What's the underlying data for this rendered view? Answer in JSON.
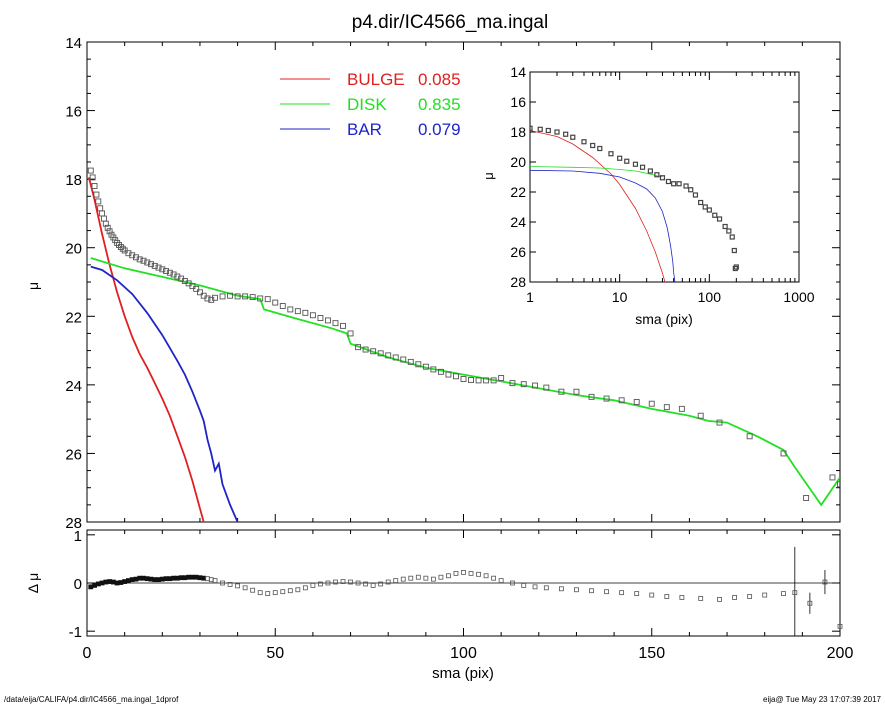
{
  "footer": {
    "path": "/data/eija/CALIFA/p4.dir/IC4566_ma.ingal_1dprof",
    "stamp": "eija@  Tue May 23 17:07:39 2017"
  },
  "chart_data": [
    {
      "id": "main",
      "type": "line",
      "title": "p4.dir/IC4566_ma.ingal",
      "ylabel": "μ",
      "xlim": [
        0,
        200
      ],
      "ylim": [
        28,
        14
      ],
      "x_ticks": [
        0,
        50,
        100,
        150,
        200
      ],
      "y_ticks": [
        14,
        16,
        18,
        20,
        22,
        24,
        26,
        28
      ],
      "legend": [
        {
          "label": "BULGE",
          "value": "0.085",
          "color": "#e02020"
        },
        {
          "label": "DISK",
          "value": "0.835",
          "color": "#22e022"
        },
        {
          "label": "BAR",
          "value": "0.079",
          "color": "#1f24c8"
        }
      ],
      "series": [
        {
          "name": "BULGE",
          "color": "#e02020",
          "x": [
            0.5,
            2,
            4,
            6,
            8,
            10,
            12,
            14,
            16,
            18,
            20,
            22,
            24,
            26,
            28,
            30,
            32
          ],
          "y": [
            17.95,
            18.6,
            19.6,
            20.5,
            21.3,
            22.0,
            22.6,
            23.1,
            23.5,
            23.95,
            24.4,
            24.9,
            25.5,
            26.1,
            26.8,
            27.6,
            28.4
          ]
        },
        {
          "name": "DISK",
          "color": "#22e022",
          "x": [
            1,
            10,
            20,
            30,
            40,
            46,
            47,
            55,
            65,
            69,
            70,
            80,
            90,
            100,
            110,
            120,
            130,
            140,
            150,
            160,
            165,
            170,
            178,
            185,
            188,
            195,
            200
          ],
          "y": [
            20.3,
            20.6,
            20.85,
            21.1,
            21.4,
            21.5,
            21.8,
            22.05,
            22.35,
            22.5,
            22.8,
            23.2,
            23.5,
            23.7,
            23.9,
            24.1,
            24.3,
            24.45,
            24.7,
            24.9,
            25.05,
            25.1,
            25.5,
            25.9,
            26.4,
            27.5,
            26.7
          ]
        },
        {
          "name": "BAR",
          "color": "#1f24c8",
          "x": [
            1,
            4,
            8,
            12,
            16,
            20,
            24,
            26,
            28,
            30,
            31,
            32,
            33,
            34,
            35,
            36,
            37,
            38,
            39,
            40,
            41
          ],
          "y": [
            20.55,
            20.65,
            20.95,
            21.35,
            21.9,
            22.55,
            23.3,
            23.7,
            24.2,
            24.75,
            25.05,
            25.6,
            26.0,
            26.5,
            26.3,
            26.9,
            27.2,
            27.5,
            27.75,
            28.0,
            28.3
          ]
        }
      ],
      "data_points": {
        "x": [
          1,
          1.5,
          2,
          2.5,
          3,
          3.5,
          4,
          4.5,
          5,
          5.5,
          6,
          6.5,
          7,
          7.5,
          8,
          8.5,
          9,
          9.5,
          10,
          11,
          12,
          13,
          14,
          15,
          16,
          17,
          18,
          19,
          20,
          21,
          22,
          23,
          24,
          25,
          26,
          27,
          28,
          29,
          30,
          31,
          32,
          33,
          34,
          36,
          38,
          40,
          42,
          44,
          46,
          48,
          50,
          52,
          54,
          56,
          58,
          60,
          62,
          64,
          66,
          68,
          70,
          72,
          74,
          76,
          78,
          80,
          82,
          84,
          86,
          88,
          90,
          92,
          94,
          96,
          98,
          100,
          102,
          104,
          106,
          108,
          110,
          113,
          116,
          119,
          122,
          126,
          130,
          134,
          138,
          142,
          146,
          150,
          154,
          158,
          163,
          168,
          176,
          185,
          191,
          198,
          200
        ],
        "y": [
          17.75,
          17.95,
          18.2,
          18.45,
          18.65,
          18.85,
          19.0,
          19.15,
          19.3,
          19.42,
          19.52,
          19.62,
          19.7,
          19.78,
          19.86,
          19.92,
          19.98,
          20.03,
          20.08,
          20.16,
          20.22,
          20.28,
          20.34,
          20.38,
          20.43,
          20.48,
          20.53,
          20.58,
          20.63,
          20.68,
          20.73,
          20.78,
          20.84,
          20.9,
          20.97,
          21.04,
          21.12,
          21.2,
          21.3,
          21.4,
          21.48,
          21.52,
          21.46,
          21.42,
          21.4,
          21.42,
          21.42,
          21.44,
          21.48,
          21.5,
          21.6,
          21.7,
          21.8,
          21.85,
          21.9,
          21.97,
          22.05,
          22.12,
          22.2,
          22.28,
          22.5,
          22.9,
          22.97,
          23.02,
          23.08,
          23.14,
          23.2,
          23.26,
          23.33,
          23.4,
          23.47,
          23.55,
          23.62,
          23.7,
          23.75,
          23.83,
          23.86,
          23.87,
          23.87,
          23.87,
          23.8,
          23.95,
          23.98,
          24.02,
          24.08,
          24.2,
          24.2,
          24.35,
          24.4,
          24.45,
          24.5,
          24.55,
          24.65,
          24.7,
          24.9,
          25.1,
          25.5,
          26.0,
          27.3,
          26.7,
          26.9
        ]
      }
    },
    {
      "id": "inset",
      "type": "line",
      "xscale": "log",
      "xlabel": "sma (pix)",
      "ylabel": "μ",
      "xlim": [
        1,
        1000
      ],
      "ylim": [
        28,
        14
      ],
      "x_ticks": [
        1,
        10,
        100,
        1000
      ],
      "y_ticks": [
        14,
        16,
        18,
        20,
        22,
        24,
        26,
        28
      ],
      "series": [
        {
          "name": "BULGE",
          "color": "#e02020",
          "x": [
            1,
            2,
            3,
            5,
            8,
            10,
            15,
            20,
            25,
            30,
            33
          ],
          "y": [
            17.9,
            18.3,
            18.8,
            19.7,
            20.8,
            21.5,
            23.1,
            24.6,
            26.0,
            27.4,
            28.3
          ]
        },
        {
          "name": "DISK",
          "color": "#22e022",
          "x": [
            1,
            3,
            6,
            10,
            15,
            20,
            30
          ],
          "y": [
            20.3,
            20.35,
            20.4,
            20.5,
            20.6,
            20.75,
            21.0
          ]
        },
        {
          "name": "BAR",
          "color": "#1f24c8",
          "x": [
            1,
            3,
            6,
            10,
            15,
            20,
            25,
            30,
            34,
            37,
            39,
            40,
            42
          ],
          "y": [
            20.55,
            20.6,
            20.75,
            21.0,
            21.4,
            21.8,
            22.4,
            23.3,
            24.4,
            25.6,
            26.6,
            27.4,
            28.3
          ]
        }
      ],
      "data_points": {
        "x": [
          1,
          1.3,
          1.6,
          2,
          2.5,
          3,
          4,
          5,
          6,
          8,
          10,
          12,
          15,
          18,
          22,
          26,
          30,
          35,
          40,
          46,
          55,
          62,
          70,
          80,
          90,
          100,
          115,
          130,
          150,
          165,
          180,
          190,
          195,
          200
        ],
        "y": [
          17.75,
          17.82,
          17.9,
          18.0,
          18.15,
          18.35,
          18.65,
          18.9,
          19.1,
          19.45,
          19.75,
          19.95,
          20.15,
          20.35,
          20.6,
          20.85,
          21.05,
          21.3,
          21.45,
          21.45,
          21.6,
          21.85,
          22.2,
          22.7,
          23.0,
          23.2,
          23.55,
          23.8,
          24.3,
          24.6,
          25.0,
          25.9,
          27.1,
          27.0
        ]
      }
    },
    {
      "id": "residual",
      "type": "scatter",
      "xlabel": "sma (pix)",
      "ylabel": "Δ μ",
      "xlim": [
        0,
        200
      ],
      "ylim": [
        -1.1,
        1.1
      ],
      "x_ticks": [
        0,
        50,
        100,
        150,
        200
      ],
      "y_ticks": [
        -1,
        0,
        1
      ],
      "reference_line": 0,
      "points": {
        "x": [
          1,
          2,
          3,
          4,
          5,
          6,
          7,
          8,
          9,
          10,
          11,
          12,
          13,
          14,
          15,
          16,
          17,
          18,
          19,
          20,
          21,
          22,
          23,
          24,
          25,
          26,
          27,
          28,
          29,
          30,
          31,
          32,
          33,
          34,
          36,
          38,
          40,
          42,
          44,
          46,
          48,
          50,
          52,
          54,
          56,
          58,
          60,
          62,
          64,
          66,
          68,
          70,
          72,
          74,
          76,
          78,
          80,
          82,
          84,
          86,
          88,
          90,
          92,
          94,
          96,
          98,
          100,
          102,
          104,
          106,
          108,
          110,
          113,
          116,
          119,
          122,
          126,
          130,
          134,
          138,
          142,
          146,
          150,
          154,
          158,
          163,
          168,
          172,
          176,
          180,
          185,
          188,
          192,
          196,
          200
        ],
        "y": [
          -0.08,
          -0.05,
          -0.02,
          0.0,
          0.02,
          0.03,
          0.02,
          0.0,
          0.01,
          0.03,
          0.05,
          0.07,
          0.08,
          0.1,
          0.1,
          0.09,
          0.08,
          0.07,
          0.07,
          0.08,
          0.09,
          0.09,
          0.1,
          0.1,
          0.11,
          0.11,
          0.12,
          0.12,
          0.12,
          0.11,
          0.1,
          0.09,
          0.07,
          0.05,
          0.0,
          -0.03,
          -0.06,
          -0.1,
          -0.15,
          -0.2,
          -0.22,
          -0.2,
          -0.18,
          -0.16,
          -0.14,
          -0.1,
          -0.05,
          -0.02,
          0.0,
          0.02,
          0.03,
          0.02,
          0.0,
          -0.02,
          -0.05,
          -0.02,
          0.02,
          0.05,
          0.08,
          0.1,
          0.12,
          0.1,
          0.08,
          0.12,
          0.15,
          0.2,
          0.22,
          0.2,
          0.18,
          0.15,
          0.1,
          0.05,
          0.0,
          -0.05,
          -0.08,
          -0.1,
          -0.12,
          -0.14,
          -0.16,
          -0.18,
          -0.2,
          -0.22,
          -0.25,
          -0.28,
          -0.3,
          -0.32,
          -0.34,
          -0.3,
          -0.28,
          -0.25,
          -0.22,
          -0.2,
          -0.42,
          0.02,
          -0.9
        ],
        "errors": {
          "x": [
            188,
            196,
            192
          ],
          "err": [
            0.95,
            0.25,
            0.22
          ]
        }
      }
    }
  ]
}
